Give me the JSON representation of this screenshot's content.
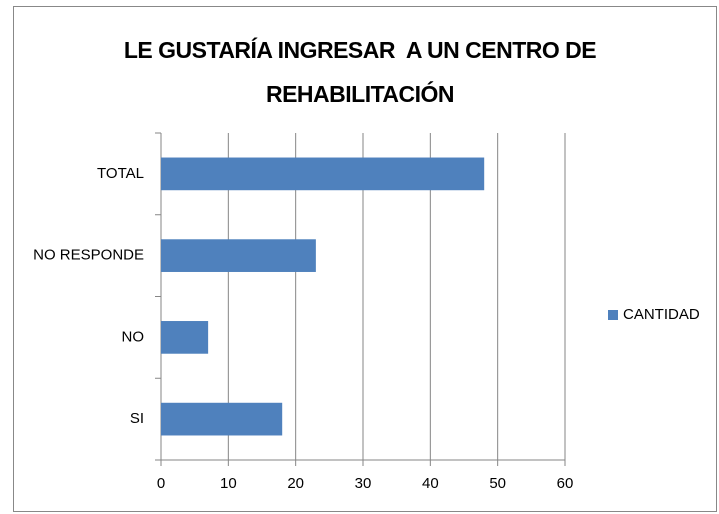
{
  "chart_data": {
    "type": "bar",
    "orientation": "horizontal",
    "title": "LE GUSTARÍA INGRESAR  A UN CENTRO DE REHABILITACIÓN",
    "categories": [
      "SI",
      "NO",
      "NO RESPONDE",
      "TOTAL"
    ],
    "series": [
      {
        "name": "CANTIDAD",
        "color": "#4f81bd",
        "values": [
          18,
          7,
          23,
          48
        ]
      }
    ],
    "xlim": [
      0,
      60
    ],
    "xticks": [
      0,
      10,
      20,
      30,
      40,
      50,
      60
    ],
    "grid": true,
    "legend": "right"
  }
}
